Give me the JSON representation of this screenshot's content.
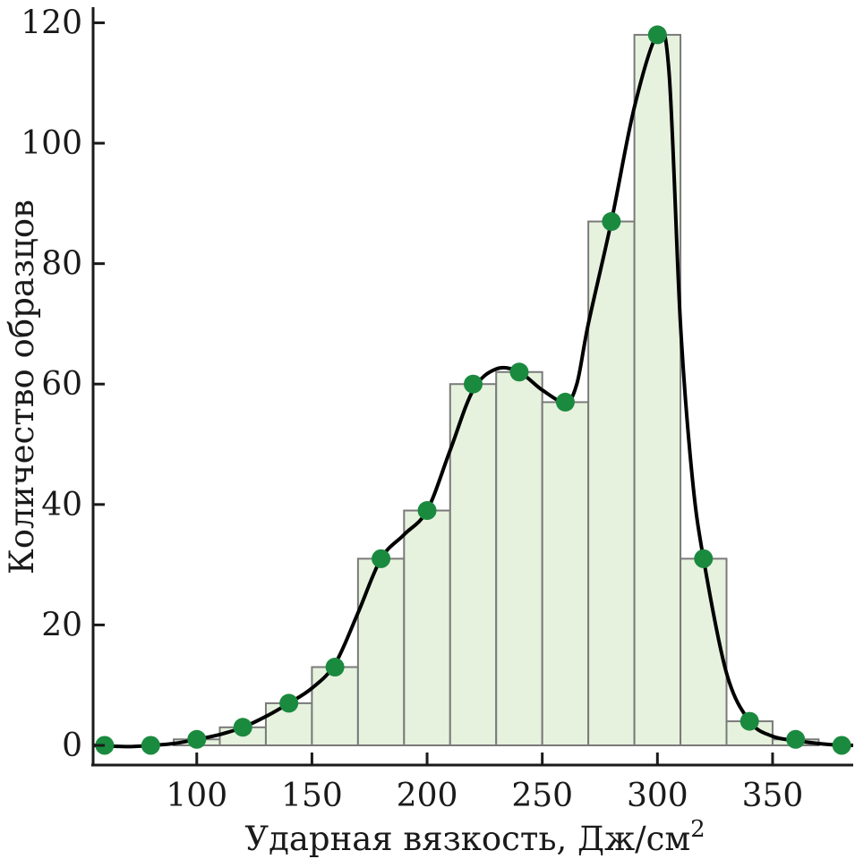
{
  "chart_data": {
    "type": "bar",
    "title": "",
    "xlabel": "Ударная вязкость, Дж/см",
    "xlabel_superscript": "2",
    "ylabel": "Количество образцов",
    "xlim": [
      55,
      385
    ],
    "ylim": [
      0,
      122
    ],
    "x_ticks": [
      100,
      150,
      200,
      250,
      300,
      350
    ],
    "y_ticks": [
      0,
      20,
      40,
      60,
      80,
      100,
      120
    ],
    "bin_width": 20,
    "bins": [
      {
        "center": 60,
        "value": 0
      },
      {
        "center": 80,
        "value": 0
      },
      {
        "center": 100,
        "value": 1
      },
      {
        "center": 120,
        "value": 3
      },
      {
        "center": 140,
        "value": 7
      },
      {
        "center": 160,
        "value": 13
      },
      {
        "center": 180,
        "value": 31
      },
      {
        "center": 200,
        "value": 39
      },
      {
        "center": 220,
        "value": 60
      },
      {
        "center": 240,
        "value": 62
      },
      {
        "center": 260,
        "value": 57
      },
      {
        "center": 280,
        "value": 87
      },
      {
        "center": 300,
        "value": 118
      },
      {
        "center": 320,
        "value": 31
      },
      {
        "center": 340,
        "value": 4
      },
      {
        "center": 360,
        "value": 1
      },
      {
        "center": 380,
        "value": 0
      }
    ],
    "curve": [
      [
        55,
        0
      ],
      [
        70,
        -0.2
      ],
      [
        80,
        0
      ],
      [
        90,
        0.3
      ],
      [
        100,
        1
      ],
      [
        110,
        1.8
      ],
      [
        120,
        3
      ],
      [
        130,
        4.8
      ],
      [
        140,
        7
      ],
      [
        150,
        9.5
      ],
      [
        160,
        13.5
      ],
      [
        170,
        22
      ],
      [
        180,
        31
      ],
      [
        190,
        35
      ],
      [
        200,
        39
      ],
      [
        210,
        49
      ],
      [
        220,
        59
      ],
      [
        230,
        62.5
      ],
      [
        240,
        62
      ],
      [
        250,
        59
      ],
      [
        260,
        57
      ],
      [
        265,
        60
      ],
      [
        270,
        70
      ],
      [
        280,
        87
      ],
      [
        290,
        106
      ],
      [
        300,
        118
      ],
      [
        305,
        112
      ],
      [
        310,
        70
      ],
      [
        315,
        45
      ],
      [
        320,
        31
      ],
      [
        330,
        12
      ],
      [
        340,
        4
      ],
      [
        350,
        1.5
      ],
      [
        360,
        0.8
      ],
      [
        370,
        0.3
      ],
      [
        380,
        0
      ],
      [
        385,
        0
      ]
    ],
    "colors": {
      "bar_fill": "#e6f2dd",
      "bar_stroke": "#7a7a7a",
      "marker": "#1a8a3f",
      "curve": "#000000",
      "axis": "#1a1a1a"
    },
    "grid": false,
    "legend": "none"
  }
}
